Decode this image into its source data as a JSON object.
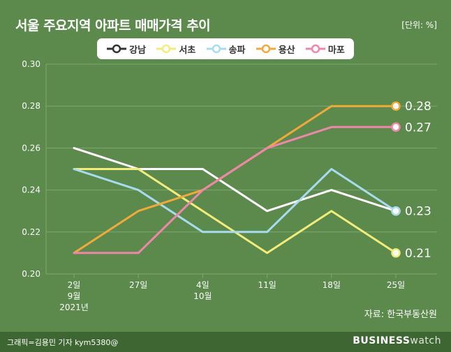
{
  "header": {
    "title": "서울 주요지역 아파트 매매가격 추이",
    "unit": "[단위: %]"
  },
  "source": "자료: 한국부동산원",
  "footer": {
    "credit": "그래픽=김용민 기자 kym5380@",
    "brand_bold": "BUSINESS",
    "brand_light": "watch"
  },
  "colors": {
    "background": "#5b8a4c",
    "grid": "#7fa874",
    "axis_text": "#ffffff"
  },
  "chart_data": {
    "type": "line",
    "categories": [
      {
        "lines": [
          "2일",
          "9월",
          "2021년"
        ]
      },
      {
        "lines": [
          "27일"
        ]
      },
      {
        "lines": [
          "4일",
          "10월"
        ]
      },
      {
        "lines": [
          "11일"
        ]
      },
      {
        "lines": [
          "18일"
        ]
      },
      {
        "lines": [
          "25일"
        ]
      }
    ],
    "ylim": [
      0.2,
      0.3
    ],
    "yticks": [
      "0.30",
      "0.28",
      "0.26",
      "0.24",
      "0.22",
      "0.20"
    ],
    "grid": true,
    "legend_position": "top-center",
    "series": [
      {
        "name": "강남",
        "color": "#ffffff",
        "values": [
          0.26,
          0.25,
          0.25,
          0.23,
          0.24,
          0.23
        ],
        "end_label": "0.23"
      },
      {
        "name": "서초",
        "color": "#f3ec7a",
        "values": [
          0.25,
          0.25,
          0.23,
          0.21,
          0.23,
          0.21
        ],
        "end_label": "0.21"
      },
      {
        "name": "송파",
        "color": "#a9dbef",
        "values": [
          0.25,
          0.24,
          0.22,
          0.22,
          0.25,
          0.23
        ],
        "end_label": ""
      },
      {
        "name": "용산",
        "color": "#f2a93b",
        "values": [
          0.21,
          0.23,
          0.24,
          0.26,
          0.28,
          0.28
        ],
        "end_label": "0.28"
      },
      {
        "name": "마포",
        "color": "#ee87a8",
        "values": [
          0.21,
          0.21,
          0.24,
          0.26,
          0.27,
          0.27
        ],
        "end_label": "0.27"
      }
    ]
  }
}
